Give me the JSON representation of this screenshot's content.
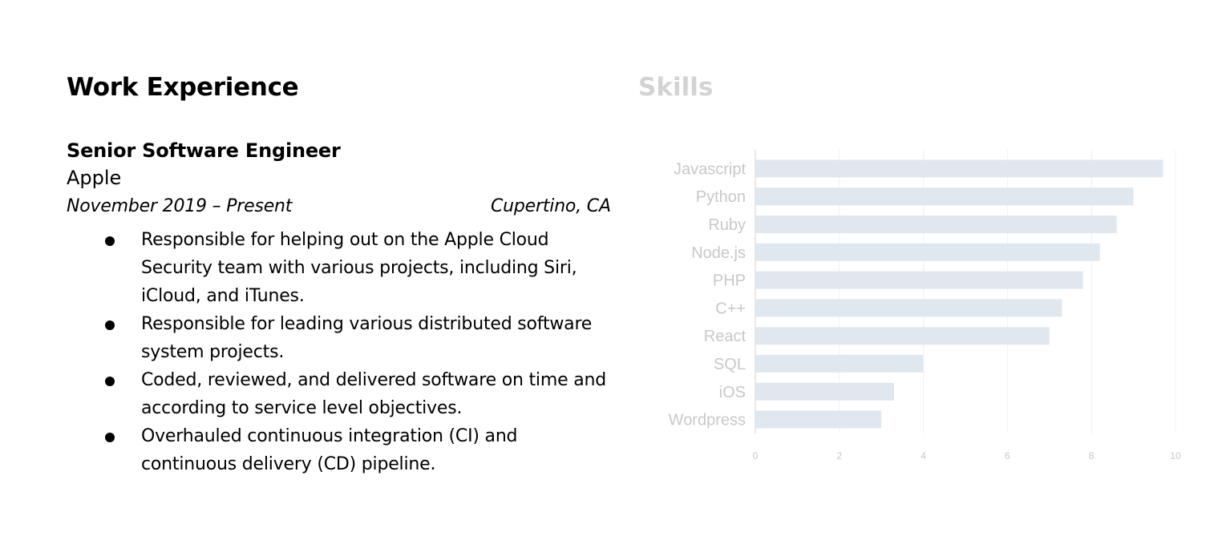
{
  "work": {
    "heading": "Work Experience",
    "job_title": "Senior Software Engineer",
    "company": "Apple",
    "dates": "November 2019 – Present",
    "location": "Cupertino, CA",
    "bullets": [
      "Responsible for helping out on the Apple Cloud Security team with various projects, including Siri, iCloud, and iTunes.",
      "Responsible for leading various distributed software system projects.",
      "Coded, reviewed, and delivered software on time and according to service level objectives.",
      "Overhauled continuous integration (CI) and continuous delivery (CD) pipeline."
    ]
  },
  "skills": {
    "heading": "Skills"
  },
  "chart_data": {
    "type": "bar",
    "orientation": "horizontal",
    "categories": [
      "Javascript",
      "Python",
      "Ruby",
      "Node.js",
      "PHP",
      "C++",
      "React",
      "SQL",
      "iOS",
      "Wordpress"
    ],
    "values": [
      9.7,
      9.0,
      8.6,
      8.2,
      7.8,
      7.3,
      7.0,
      4.0,
      3.3,
      3.0
    ],
    "x_ticks": [
      "0",
      "2",
      "4",
      "6",
      "8",
      "10"
    ],
    "xlim": [
      0,
      10
    ],
    "grid": true,
    "colors": {
      "bar": "#dfe8ef",
      "label": "#c8c8c8",
      "tick": "#c8c8c8",
      "grid": "#f0f0f0",
      "axis": "#e0e0e0"
    }
  }
}
